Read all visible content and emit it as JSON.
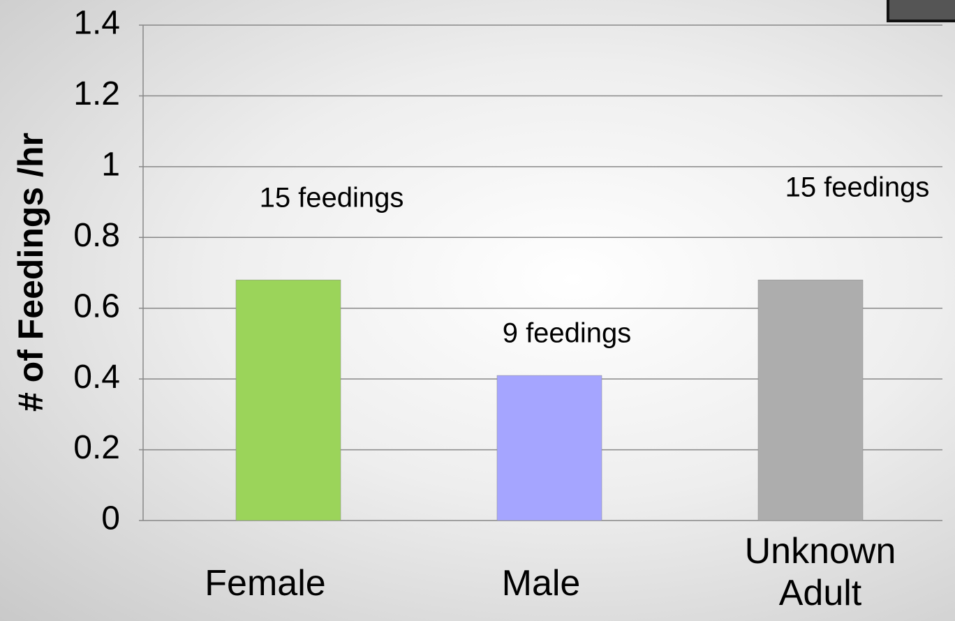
{
  "chart_data": {
    "type": "bar",
    "y_axis_label": "# of Feedings /hr",
    "categories": [
      "Female",
      "Male",
      "Unknown Adult"
    ],
    "values": [
      0.68,
      0.41,
      0.68
    ],
    "colors": [
      "#9bd45a",
      "#a5a5ff",
      "#adadad"
    ],
    "annotations": [
      "15 feedings",
      "9 feedings",
      "15 feedings"
    ],
    "ylim": [
      0,
      1.4
    ],
    "yticks": [
      0,
      0.2,
      0.4,
      0.6,
      0.8,
      1,
      1.2,
      1.4
    ],
    "grid": true
  }
}
